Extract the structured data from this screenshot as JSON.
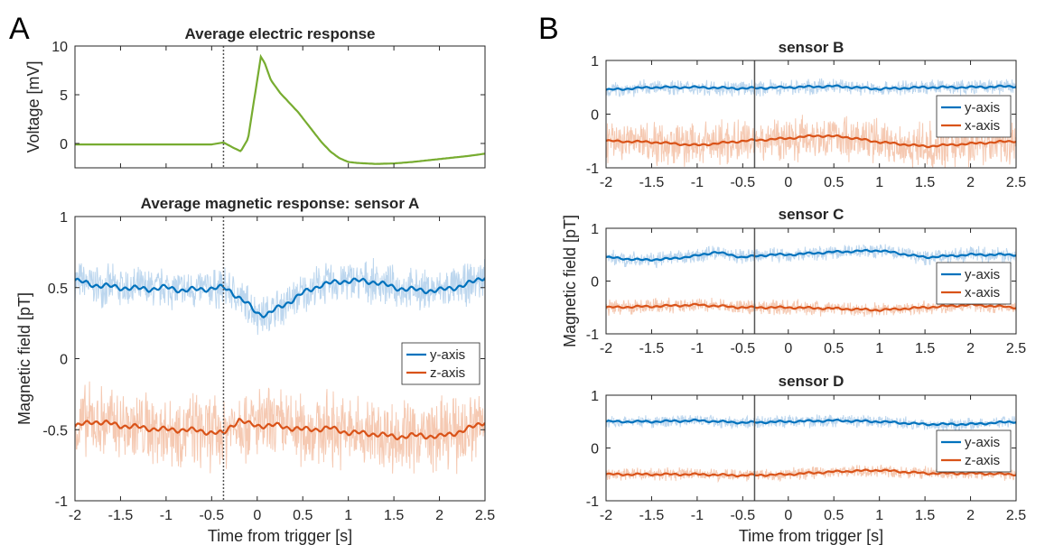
{
  "panel_labels": [
    "A",
    "B"
  ],
  "colors": {
    "electric": "#77AC30",
    "y_axis": "#0072BD",
    "z_axis": "#D95319",
    "x_axis": "#D95319",
    "y_band": "#bcd6ee",
    "z_band": "#f5c9b2",
    "axis": "#262626",
    "trigger_line": "#555555"
  },
  "chart_data": [
    {
      "id": "electric",
      "type": "line",
      "title": "Average electric response",
      "xlabel": "",
      "ylabel": "Voltage [mV]",
      "xlim": [
        -2,
        2.5
      ],
      "ylim": [
        -2.5,
        10
      ],
      "xticks": [
        -2,
        -1.5,
        -1,
        -0.5,
        0,
        0.5,
        1,
        1.5,
        2,
        2.5
      ],
      "xticklabels": [],
      "yticks": [
        0,
        5,
        10
      ],
      "yticklabels": [
        "0",
        "5",
        "10"
      ],
      "trigger_x": -0.37,
      "series": [
        {
          "key": "electric",
          "x": [
            -2,
            -1.5,
            -1,
            -0.5,
            -0.37,
            -0.25,
            -0.18,
            -0.1,
            0,
            0.04,
            0.08,
            0.15,
            0.25,
            0.35,
            0.45,
            0.55,
            0.7,
            0.8,
            0.9,
            1.0,
            1.1,
            1.3,
            1.5,
            1.7,
            2.0,
            2.3,
            2.5
          ],
          "y": [
            -0.1,
            -0.1,
            -0.1,
            -0.1,
            0.1,
            -0.5,
            -0.8,
            0.5,
            6.5,
            8.9,
            8.3,
            6.5,
            5.2,
            4.2,
            3.2,
            2.0,
            0.2,
            -0.8,
            -1.5,
            -1.9,
            -2.0,
            -2.1,
            -2.05,
            -1.9,
            -1.6,
            -1.3,
            -1.05
          ]
        }
      ]
    },
    {
      "id": "sensorA",
      "type": "line",
      "title": "Average magnetic response: sensor A",
      "xlabel": "Time from trigger [s]",
      "ylabel": "Magnetic field [pT]",
      "xlim": [
        -2,
        2.5
      ],
      "ylim": [
        -1,
        1
      ],
      "xticks": [
        -2,
        -1.5,
        -1,
        -0.5,
        0,
        0.5,
        1,
        1.5,
        2,
        2.5
      ],
      "xticklabels": [
        "-2",
        "-1.5",
        "-1",
        "-0.5",
        "0",
        "0.5",
        "1",
        "1.5",
        "2",
        "2.5"
      ],
      "yticks": [
        -1,
        -0.5,
        0,
        0.5,
        1
      ],
      "yticklabels": [
        "-1",
        "-0.5",
        "0",
        "0.5",
        "1"
      ],
      "trigger_x": -0.37,
      "legend": {
        "location": "east"
      },
      "series": [
        {
          "name": "y-axis",
          "key": "y_axis",
          "x": [
            -2,
            -1.8,
            -1.5,
            -1.2,
            -1,
            -0.8,
            -0.6,
            -0.37,
            -0.3,
            -0.1,
            0,
            0.1,
            0.3,
            0.5,
            0.7,
            1.0,
            1.3,
            1.5,
            1.8,
            2.0,
            2.3,
            2.5
          ],
          "y": [
            0.55,
            0.52,
            0.5,
            0.49,
            0.5,
            0.48,
            0.49,
            0.5,
            0.48,
            0.38,
            0.32,
            0.31,
            0.38,
            0.46,
            0.52,
            0.55,
            0.54,
            0.5,
            0.48,
            0.48,
            0.52,
            0.58
          ],
          "noise": 0.12
        },
        {
          "name": "z-axis",
          "key": "z_axis",
          "x": [
            -2,
            -1.8,
            -1.5,
            -1.2,
            -1,
            -0.8,
            -0.6,
            -0.37,
            -0.3,
            -0.2,
            -0.1,
            0,
            0.2,
            0.5,
            0.8,
            1.0,
            1.3,
            1.5,
            1.8,
            2.0,
            2.3,
            2.5
          ],
          "y": [
            -0.48,
            -0.44,
            -0.47,
            -0.49,
            -0.5,
            -0.5,
            -0.51,
            -0.53,
            -0.48,
            -0.43,
            -0.46,
            -0.47,
            -0.47,
            -0.5,
            -0.49,
            -0.52,
            -0.53,
            -0.55,
            -0.54,
            -0.55,
            -0.5,
            -0.44
          ],
          "noise": 0.22
        }
      ]
    },
    {
      "id": "sensorB",
      "type": "line",
      "title": "sensor B",
      "xlabel": "",
      "ylabel": "",
      "xlim": [
        -2,
        2.5
      ],
      "ylim": [
        -1,
        1
      ],
      "xticks": [
        -2,
        -1.5,
        -1,
        -0.5,
        0,
        0.5,
        1,
        1.5,
        2,
        2.5
      ],
      "xticklabels": [
        "-2",
        "-1.5",
        "-1",
        "-0.5",
        "0",
        "0.5",
        "1",
        "1.5",
        "2",
        "2.5"
      ],
      "yticks": [
        -1,
        0,
        1
      ],
      "yticklabels": [
        "-1",
        "0",
        "1"
      ],
      "trigger_x": -0.37,
      "legend": {
        "location": "east"
      },
      "series": [
        {
          "name": "y-axis",
          "key": "y_axis",
          "x": [
            -2,
            -1.5,
            -1,
            -0.5,
            0,
            0.5,
            1,
            1.5,
            2,
            2.5
          ],
          "y": [
            0.45,
            0.5,
            0.5,
            0.48,
            0.5,
            0.52,
            0.47,
            0.5,
            0.5,
            0.52
          ],
          "noise": 0.12
        },
        {
          "name": "x-axis",
          "key": "x_axis",
          "x": [
            -2,
            -1.5,
            -1,
            -0.5,
            0,
            0.3,
            0.6,
            1,
            1.5,
            2,
            2.5
          ],
          "y": [
            -0.5,
            -0.52,
            -0.58,
            -0.5,
            -0.45,
            -0.4,
            -0.42,
            -0.52,
            -0.6,
            -0.55,
            -0.5
          ],
          "noise": 0.35
        }
      ]
    },
    {
      "id": "sensorC",
      "type": "line",
      "title": "sensor C",
      "xlabel": "",
      "ylabel": "Magnetic field [pT]",
      "xlim": [
        -2,
        2.5
      ],
      "ylim": [
        -1,
        1
      ],
      "xticks": [
        -2,
        -1.5,
        -1,
        -0.5,
        0,
        0.5,
        1,
        1.5,
        2,
        2.5
      ],
      "xticklabels": [
        "-2",
        "-1.5",
        "-1",
        "-0.5",
        "0",
        "0.5",
        "1",
        "1.5",
        "2",
        "2.5"
      ],
      "yticks": [
        -1,
        0,
        1
      ],
      "yticklabels": [
        "-1",
        "0",
        "1"
      ],
      "trigger_x": -0.37,
      "legend": {
        "location": "east"
      },
      "series": [
        {
          "name": "y-axis",
          "key": "y_axis",
          "x": [
            -2,
            -1.6,
            -1.3,
            -1,
            -0.8,
            -0.5,
            -0.2,
            0,
            0.5,
            1,
            1.5,
            2,
            2.5
          ],
          "y": [
            0.45,
            0.4,
            0.42,
            0.48,
            0.55,
            0.45,
            0.5,
            0.5,
            0.55,
            0.58,
            0.45,
            0.5,
            0.5
          ],
          "noise": 0.12
        },
        {
          "name": "x-axis",
          "key": "x_axis",
          "x": [
            -2,
            -1.5,
            -1,
            -0.5,
            0,
            0.5,
            1,
            1.5,
            2,
            2.5
          ],
          "y": [
            -0.5,
            -0.48,
            -0.45,
            -0.5,
            -0.5,
            -0.52,
            -0.55,
            -0.5,
            -0.45,
            -0.5
          ],
          "noise": 0.12
        }
      ]
    },
    {
      "id": "sensorD",
      "type": "line",
      "title": "sensor D",
      "xlabel": "Time from trigger [s]",
      "ylabel": "",
      "xlim": [
        -2,
        2.5
      ],
      "ylim": [
        -1,
        1
      ],
      "xticks": [
        -2,
        -1.5,
        -1,
        -0.5,
        0,
        0.5,
        1,
        1.5,
        2,
        2.5
      ],
      "xticklabels": [
        "-2",
        "-1.5",
        "-1",
        "-0.5",
        "0",
        "0.5",
        "1",
        "1.5",
        "2",
        "2.5"
      ],
      "yticks": [
        -1,
        0,
        1
      ],
      "yticklabels": [
        "-1",
        "0",
        "1"
      ],
      "trigger_x": -0.37,
      "legend": {
        "location": "east"
      },
      "series": [
        {
          "name": "y-axis",
          "key": "y_axis",
          "x": [
            -2,
            -1.5,
            -1,
            -0.5,
            0,
            0.5,
            1,
            1.5,
            2,
            2.5
          ],
          "y": [
            0.5,
            0.5,
            0.52,
            0.48,
            0.5,
            0.52,
            0.5,
            0.45,
            0.45,
            0.5
          ],
          "noise": 0.1
        },
        {
          "name": "z-axis",
          "key": "z_axis",
          "x": [
            -2,
            -1.5,
            -1,
            -0.5,
            0,
            0.5,
            1,
            1.5,
            2,
            2.5
          ],
          "y": [
            -0.5,
            -0.5,
            -0.5,
            -0.52,
            -0.5,
            -0.45,
            -0.42,
            -0.48,
            -0.48,
            -0.5
          ],
          "noise": 0.1
        }
      ]
    }
  ]
}
